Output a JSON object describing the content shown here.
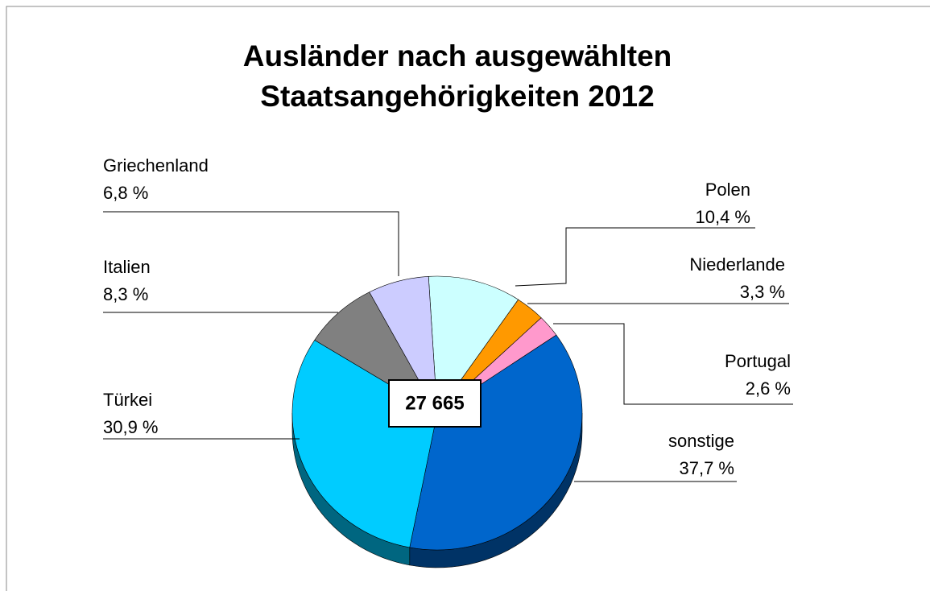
{
  "chart_data": {
    "type": "pie",
    "title": [
      "Ausländer nach ausgewählten",
      "Staatsangehörigkeiten 2012"
    ],
    "categories": [
      "Polen",
      "Niederlande",
      "Portugal",
      "sonstige",
      "Türkei",
      "Italien",
      "Griechenland"
    ],
    "values": [
      10.4,
      3.3,
      2.6,
      37.7,
      30.9,
      8.3,
      6.8
    ],
    "value_labels": [
      "10,4 %",
      "3,3 %",
      "2,6 %",
      "37,7 %",
      "30,9 %",
      "8,3 %",
      "6,8 %"
    ],
    "colors": [
      "#ccffff",
      "#ff9900",
      "#ff99cc",
      "#0066cc",
      "#00ccff",
      "#808080",
      "#ccccff"
    ],
    "annotation": "27 665"
  }
}
